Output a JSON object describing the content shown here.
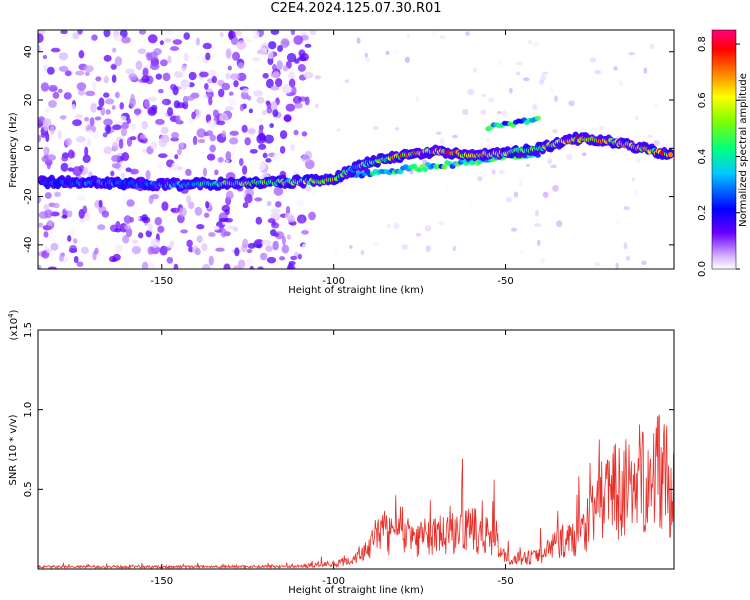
{
  "page": {
    "title": "C2E4.2024.125.07.30.R01"
  },
  "colorbar": {
    "label": "Normalized spectral amplitude",
    "ticks": [
      "0.0",
      "0.2",
      "0.4",
      "0.6",
      "0.8"
    ]
  },
  "chart_data": [
    {
      "type": "heatmap",
      "title": "",
      "xlabel": "Height of straight line (km)",
      "ylabel": "Frequency (Hz)",
      "xlim": [
        -186,
        -1
      ],
      "ylim": [
        -50,
        49
      ],
      "xticks": [
        -150,
        -100,
        -50
      ],
      "yticks": [
        -40,
        -20,
        0,
        20,
        40
      ],
      "color_range": [
        0,
        0.85
      ],
      "ridge": {
        "description_values": "frequency of the dominant spectral ridge",
        "x": [
          -185,
          -170,
          -155,
          -145,
          -130,
          -115,
          -105,
          -100,
          -95,
          -90,
          -80,
          -70,
          -60,
          -50,
          -40,
          -30,
          -20,
          -10,
          -2
        ],
        "y": [
          -14,
          -14,
          -15,
          -15,
          -14.5,
          -14,
          -13.5,
          -13,
          -9,
          -6,
          -3,
          -1,
          -3,
          -2,
          0,
          4,
          3,
          0,
          -3
        ],
        "peak_amplitude": [
          0.3,
          0.35,
          0.3,
          0.4,
          0.55,
          0.6,
          0.65,
          0.7,
          0.45,
          0.6,
          0.75,
          0.85,
          0.8,
          0.6,
          0.65,
          0.85,
          0.7,
          0.75,
          0.8
        ]
      },
      "secondary_ridges": [
        {
          "x": [
            -95,
            -75,
            -55,
            -40
          ],
          "y": [
            -11,
            -8,
            -5,
            -2
          ]
        },
        {
          "x": [
            -55,
            -45,
            -40
          ],
          "y": [
            9,
            11,
            13
          ]
        }
      ]
    },
    {
      "type": "line",
      "title": "",
      "xlabel": "Height of straight line (km)",
      "ylabel": "SNR (10 * v/v)",
      "y_scale_label": "(x10",
      "y_scale_exponent": "4",
      "y_scale_close": ")",
      "xlim": [
        -186,
        -1
      ],
      "ylim": [
        0,
        1.5
      ],
      "xticks": [
        -150,
        -100,
        -50
      ],
      "yticks": [
        0.5,
        1.0,
        1.5
      ],
      "color": "#e8302a",
      "envelope": {
        "x": [
          -186,
          -150,
          -110,
          -100,
          -95,
          -90,
          -85,
          -80,
          -75,
          -70,
          -65,
          -60,
          -55,
          -50,
          -45,
          -40,
          -35,
          -30,
          -25,
          -20,
          -15,
          -10,
          -5,
          -1
        ],
        "y": [
          0.02,
          0.02,
          0.025,
          0.05,
          0.08,
          0.2,
          0.35,
          0.3,
          0.3,
          0.3,
          0.35,
          0.35,
          0.33,
          0.1,
          0.1,
          0.12,
          0.25,
          0.28,
          0.5,
          0.7,
          0.75,
          0.85,
          0.95,
          0.7
        ]
      }
    }
  ]
}
